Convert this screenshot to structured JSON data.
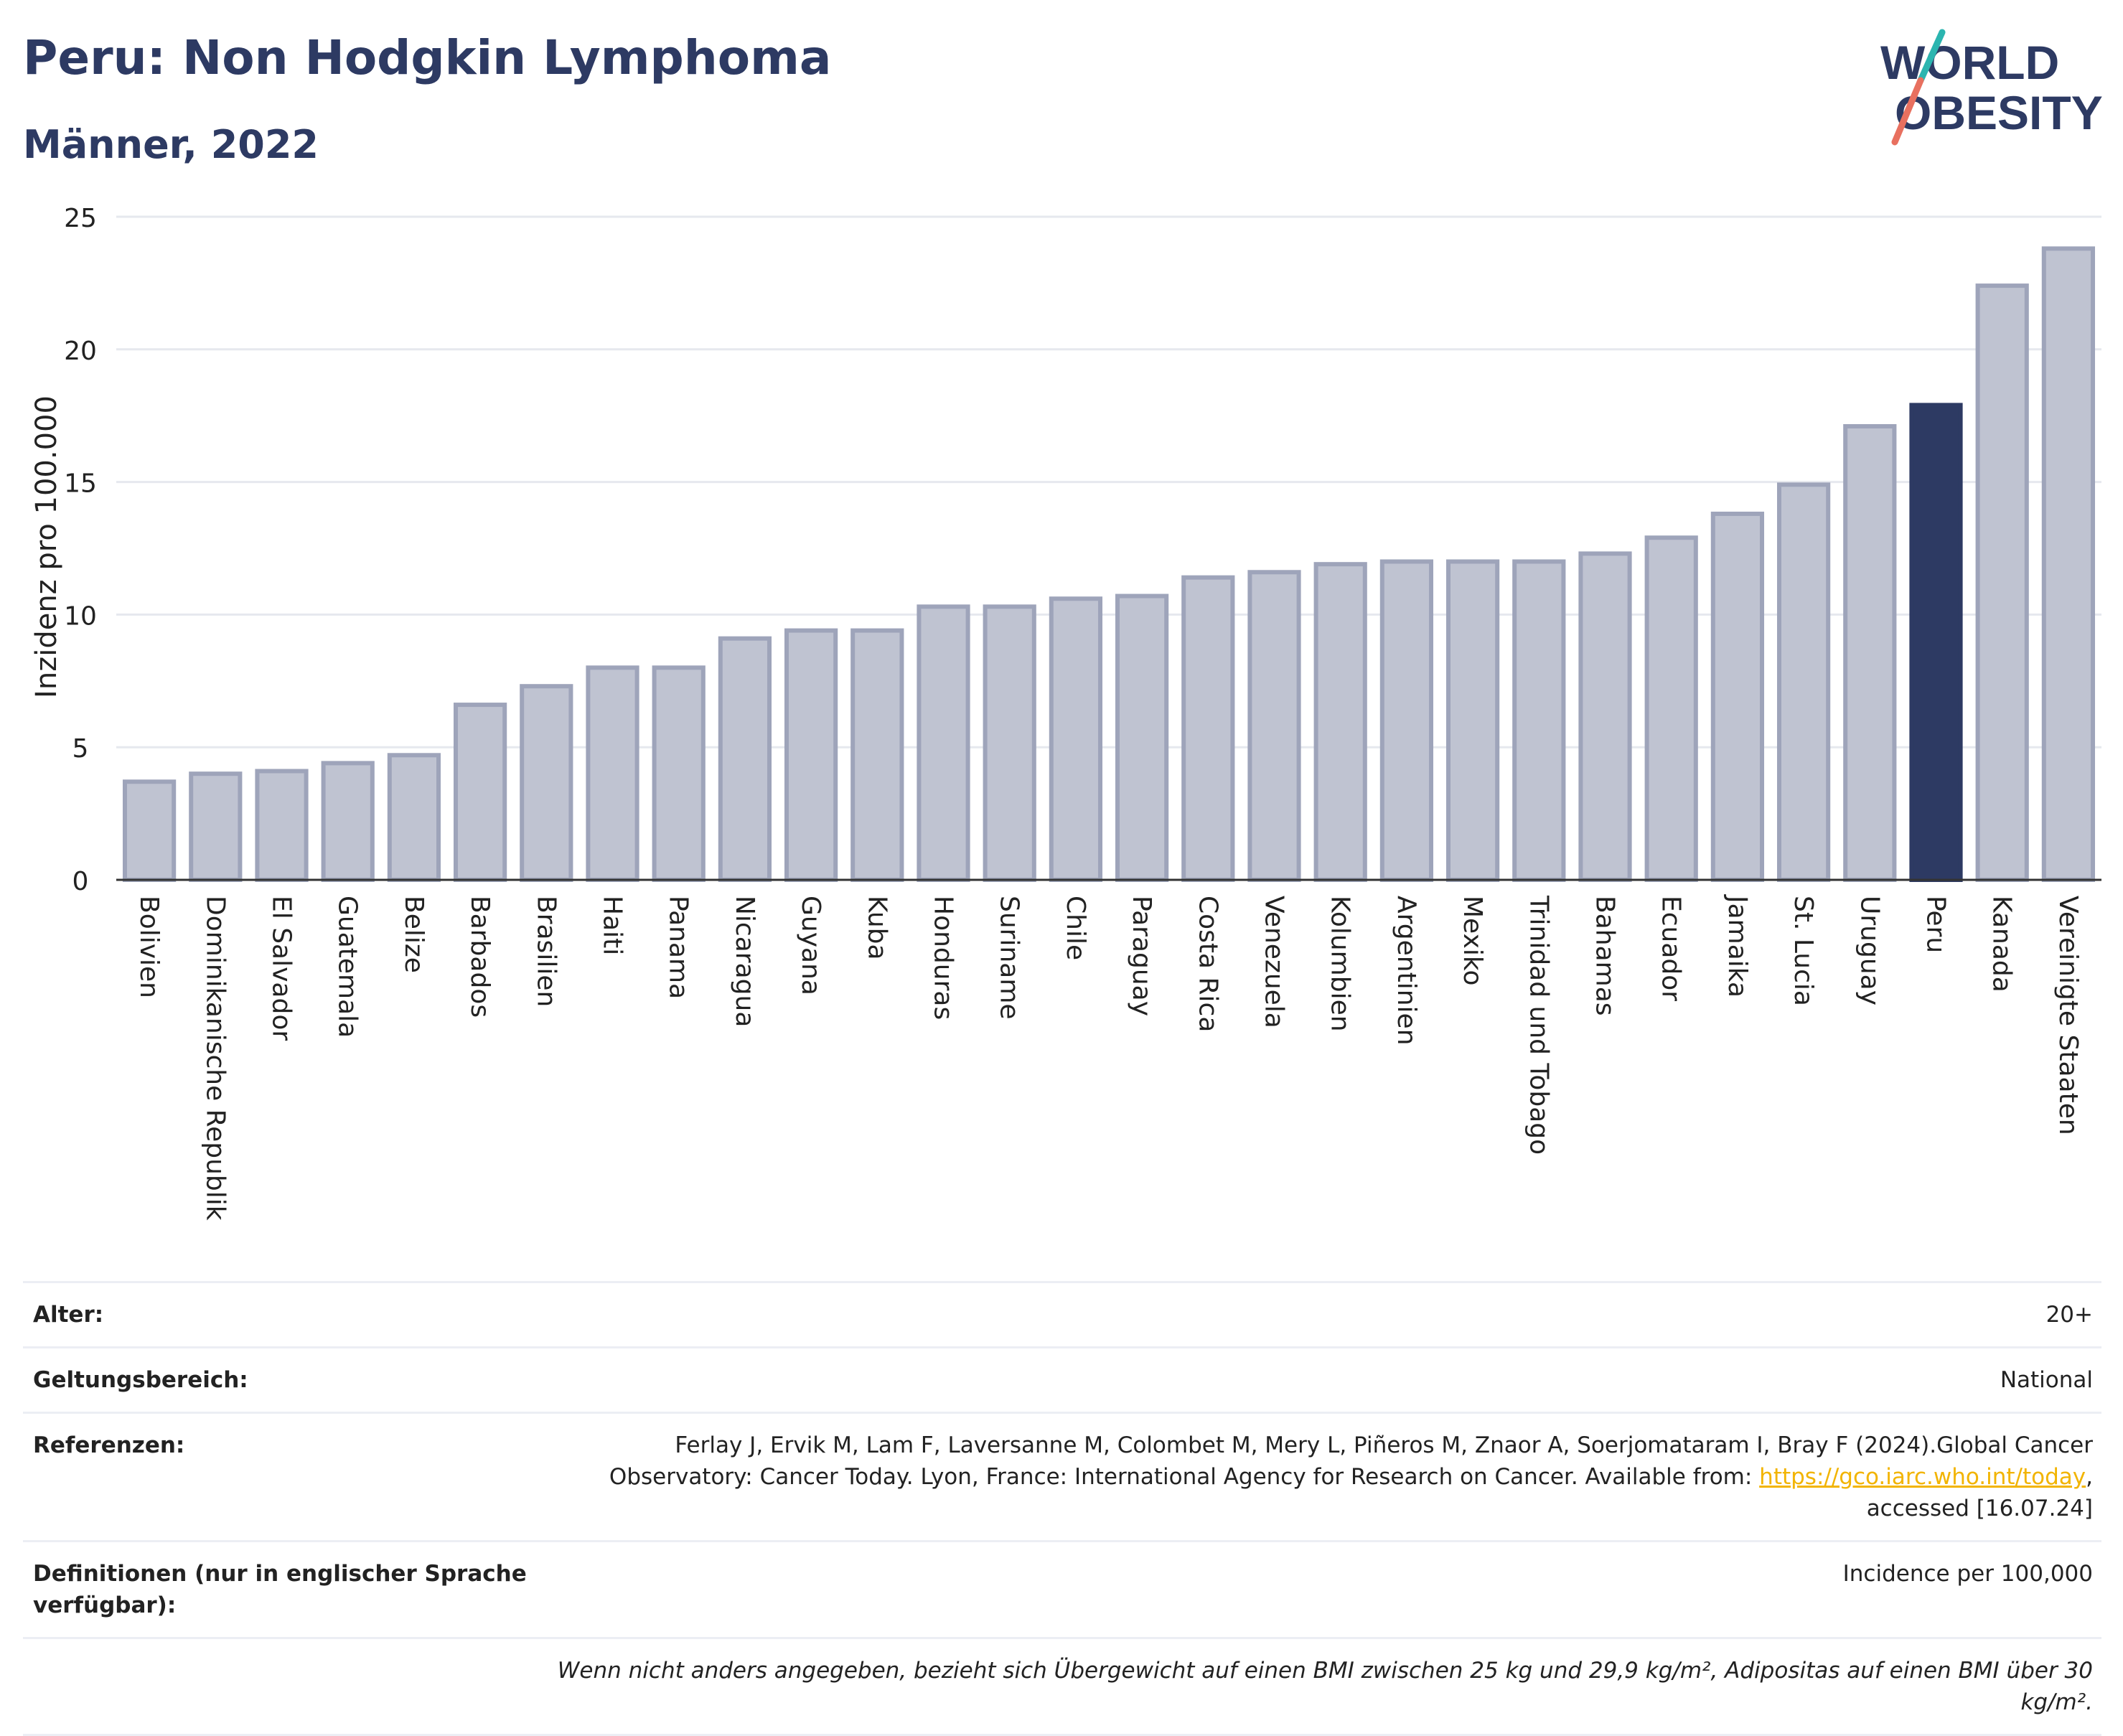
{
  "header": {
    "title": "Peru: Non Hodgkin Lymphoma",
    "subtitle": "Männer, 2022"
  },
  "logo": {
    "line1": "WORLD",
    "line2": "OBESITY"
  },
  "colors": {
    "bar": "#bfc3d1",
    "bar_border": "#9ea4ba",
    "highlight": "#2d3a63",
    "grid": "#e6e8ee"
  },
  "chart_data": {
    "type": "bar",
    "ylabel": "Inzidenz pro 100.000",
    "ylim": [
      0,
      25
    ],
    "yticks": [
      0,
      5,
      10,
      15,
      20,
      25
    ],
    "grid": true,
    "highlight": "Peru",
    "categories": [
      "Bolivien",
      "Dominikanische Republik",
      "El Salvador",
      "Guatemala",
      "Belize",
      "Barbados",
      "Brasilien",
      "Haiti",
      "Panama",
      "Nicaragua",
      "Guyana",
      "Kuba",
      "Honduras",
      "Suriname",
      "Chile",
      "Paraguay",
      "Costa Rica",
      "Venezuela",
      "Kolumbien",
      "Argentinien",
      "Mexiko",
      "Trinidad und Tobago",
      "Bahamas",
      "Ecuador",
      "Jamaika",
      "St. Lucia",
      "Uruguay",
      "Peru",
      "Kanada",
      "Vereinigte Staaten"
    ],
    "values": [
      3.7,
      4.0,
      4.1,
      4.4,
      4.7,
      6.6,
      7.3,
      8.0,
      8.0,
      9.1,
      9.4,
      9.4,
      10.3,
      10.3,
      10.6,
      10.7,
      11.4,
      11.6,
      11.9,
      12.0,
      12.0,
      12.0,
      12.3,
      12.9,
      13.8,
      14.9,
      17.1,
      17.9,
      22.4,
      23.8
    ]
  },
  "info": {
    "age_label": "Alter:",
    "age_value": "20+",
    "scope_label": "Geltungsbereich:",
    "scope_value": "National",
    "refs_label": "Referenzen:",
    "refs_text": "Ferlay J, Ervik M, Lam F, Laversanne M, Colombet M, Mery L, Piñeros M, Znaor A, Soerjomataram I, Bray F (2024).Global Cancer Observatory: Cancer Today. Lyon, France: International Agency for Research on Cancer. Available from: ",
    "refs_link": "https://gco.iarc.who.int/today",
    "refs_suffix": ", accessed [16.07.24]",
    "def_label": "Definitionen (nur in englischer Sprache verfügbar):",
    "def_value": "Incidence per 100,000",
    "note": "Wenn nicht anders angegeben, bezieht sich Übergewicht auf einen BMI zwischen 25 kg und 29,9 kg/m², Adipositas auf einen BMI über 30 kg/m²."
  }
}
